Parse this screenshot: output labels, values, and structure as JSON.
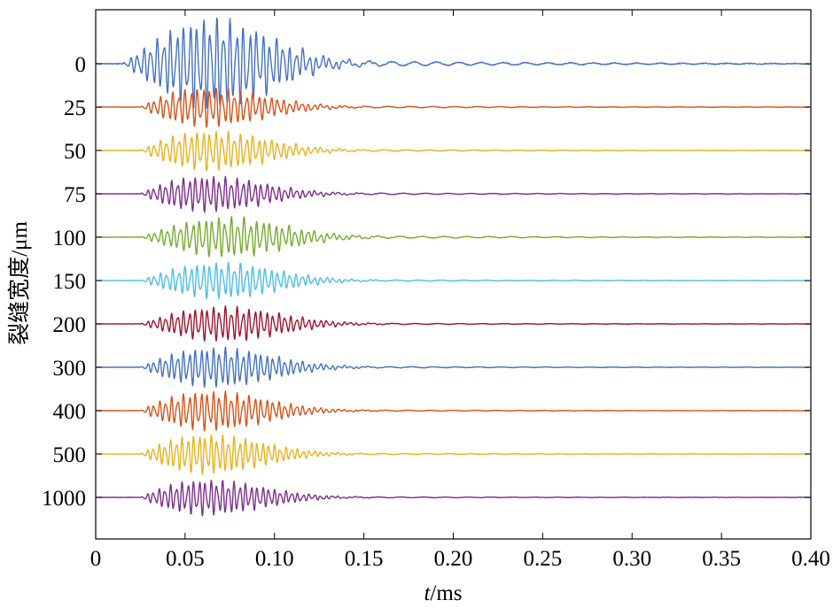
{
  "chart_data": {
    "type": "line",
    "title": "",
    "xlabel": {
      "italic": "t",
      "rest": "/ms"
    },
    "ylabel": "裂缝宽度/μm",
    "xlim": [
      0,
      0.4
    ],
    "x_ticks": [
      "0",
      "0.05",
      "0.10",
      "0.15",
      "0.20",
      "0.25",
      "0.30",
      "0.35",
      "0.40"
    ],
    "x_tick_values": [
      0,
      0.05,
      0.1,
      0.15,
      0.2,
      0.25,
      0.3,
      0.35,
      0.4
    ],
    "grid": false,
    "legend": "none",
    "series": [
      {
        "label": "0",
        "color": "#4472c4",
        "onset": 0.015,
        "f": 27,
        "amp": 1.25,
        "decay": 0.1,
        "peak_t": 0.065,
        "tail": 0.08
      },
      {
        "label": "25",
        "color": "#d95319",
        "onset": 0.025,
        "f": 29,
        "amp": 0.55,
        "decay": 0.11,
        "peak_t": 0.06,
        "tail": 0.06
      },
      {
        "label": "50",
        "color": "#edb120",
        "onset": 0.025,
        "f": 29,
        "amp": 0.55,
        "decay": 0.11,
        "peak_t": 0.062,
        "tail": 0.06
      },
      {
        "label": "75",
        "color": "#7e2f8e",
        "onset": 0.025,
        "f": 30,
        "amp": 0.5,
        "decay": 0.11,
        "peak_t": 0.06,
        "tail": 0.06
      },
      {
        "label": "100",
        "color": "#77ac30",
        "onset": 0.025,
        "f": 28,
        "amp": 0.55,
        "decay": 0.12,
        "peak_t": 0.072,
        "tail": 0.09
      },
      {
        "label": "150",
        "color": "#4dbeee",
        "onset": 0.025,
        "f": 29,
        "amp": 0.5,
        "decay": 0.11,
        "peak_t": 0.068,
        "tail": 0.05
      },
      {
        "label": "200",
        "color": "#a2142f",
        "onset": 0.025,
        "f": 30,
        "amp": 0.48,
        "decay": 0.11,
        "peak_t": 0.07,
        "tail": 0.05
      },
      {
        "label": "300",
        "color": "#4472c4",
        "onset": 0.025,
        "f": 30,
        "amp": 0.55,
        "decay": 0.11,
        "peak_t": 0.065,
        "tail": 0.05
      },
      {
        "label": "400",
        "color": "#d95319",
        "onset": 0.025,
        "f": 30,
        "amp": 0.55,
        "decay": 0.1,
        "peak_t": 0.062,
        "tail": 0.04
      },
      {
        "label": "500",
        "color": "#edb120",
        "onset": 0.025,
        "f": 31,
        "amp": 0.55,
        "decay": 0.1,
        "peak_t": 0.06,
        "tail": 0.04
      },
      {
        "label": "1000",
        "color": "#7e2f8e",
        "onset": 0.025,
        "f": 31,
        "amp": 0.5,
        "decay": 0.09,
        "peak_t": 0.06,
        "tail": 0.04
      }
    ]
  }
}
